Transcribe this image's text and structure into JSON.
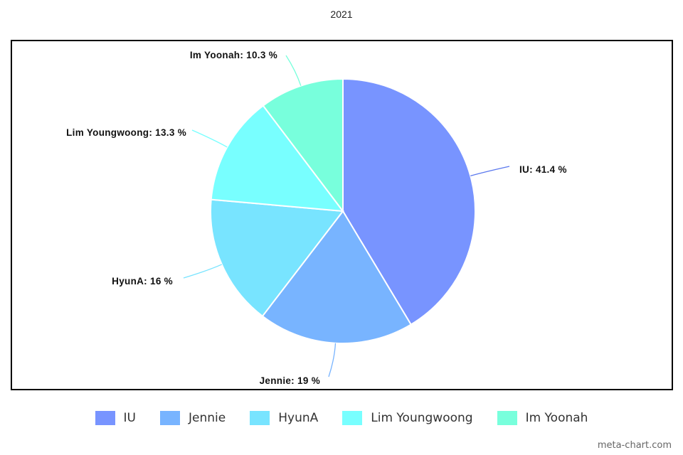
{
  "chart_data": {
    "type": "pie",
    "title": "2021",
    "categories": [
      "IU",
      "Jennie",
      "HyunA",
      "Lim Youngwoong",
      "Im Yoonah"
    ],
    "values": [
      41.4,
      19,
      16,
      13.3,
      10.3
    ],
    "labels": [
      "IU: 41.4 %",
      "Jennie: 19 %",
      "HyunA: 16 %",
      "Lim Youngwoong: 13.3 %",
      "Im Yoonah: 10.3 %"
    ],
    "colors": [
      "#7894ff",
      "#78b4ff",
      "#78e4ff",
      "#78ffff",
      "#78ffdc"
    ],
    "legend_position": "bottom"
  },
  "credit": "meta-chart.com"
}
